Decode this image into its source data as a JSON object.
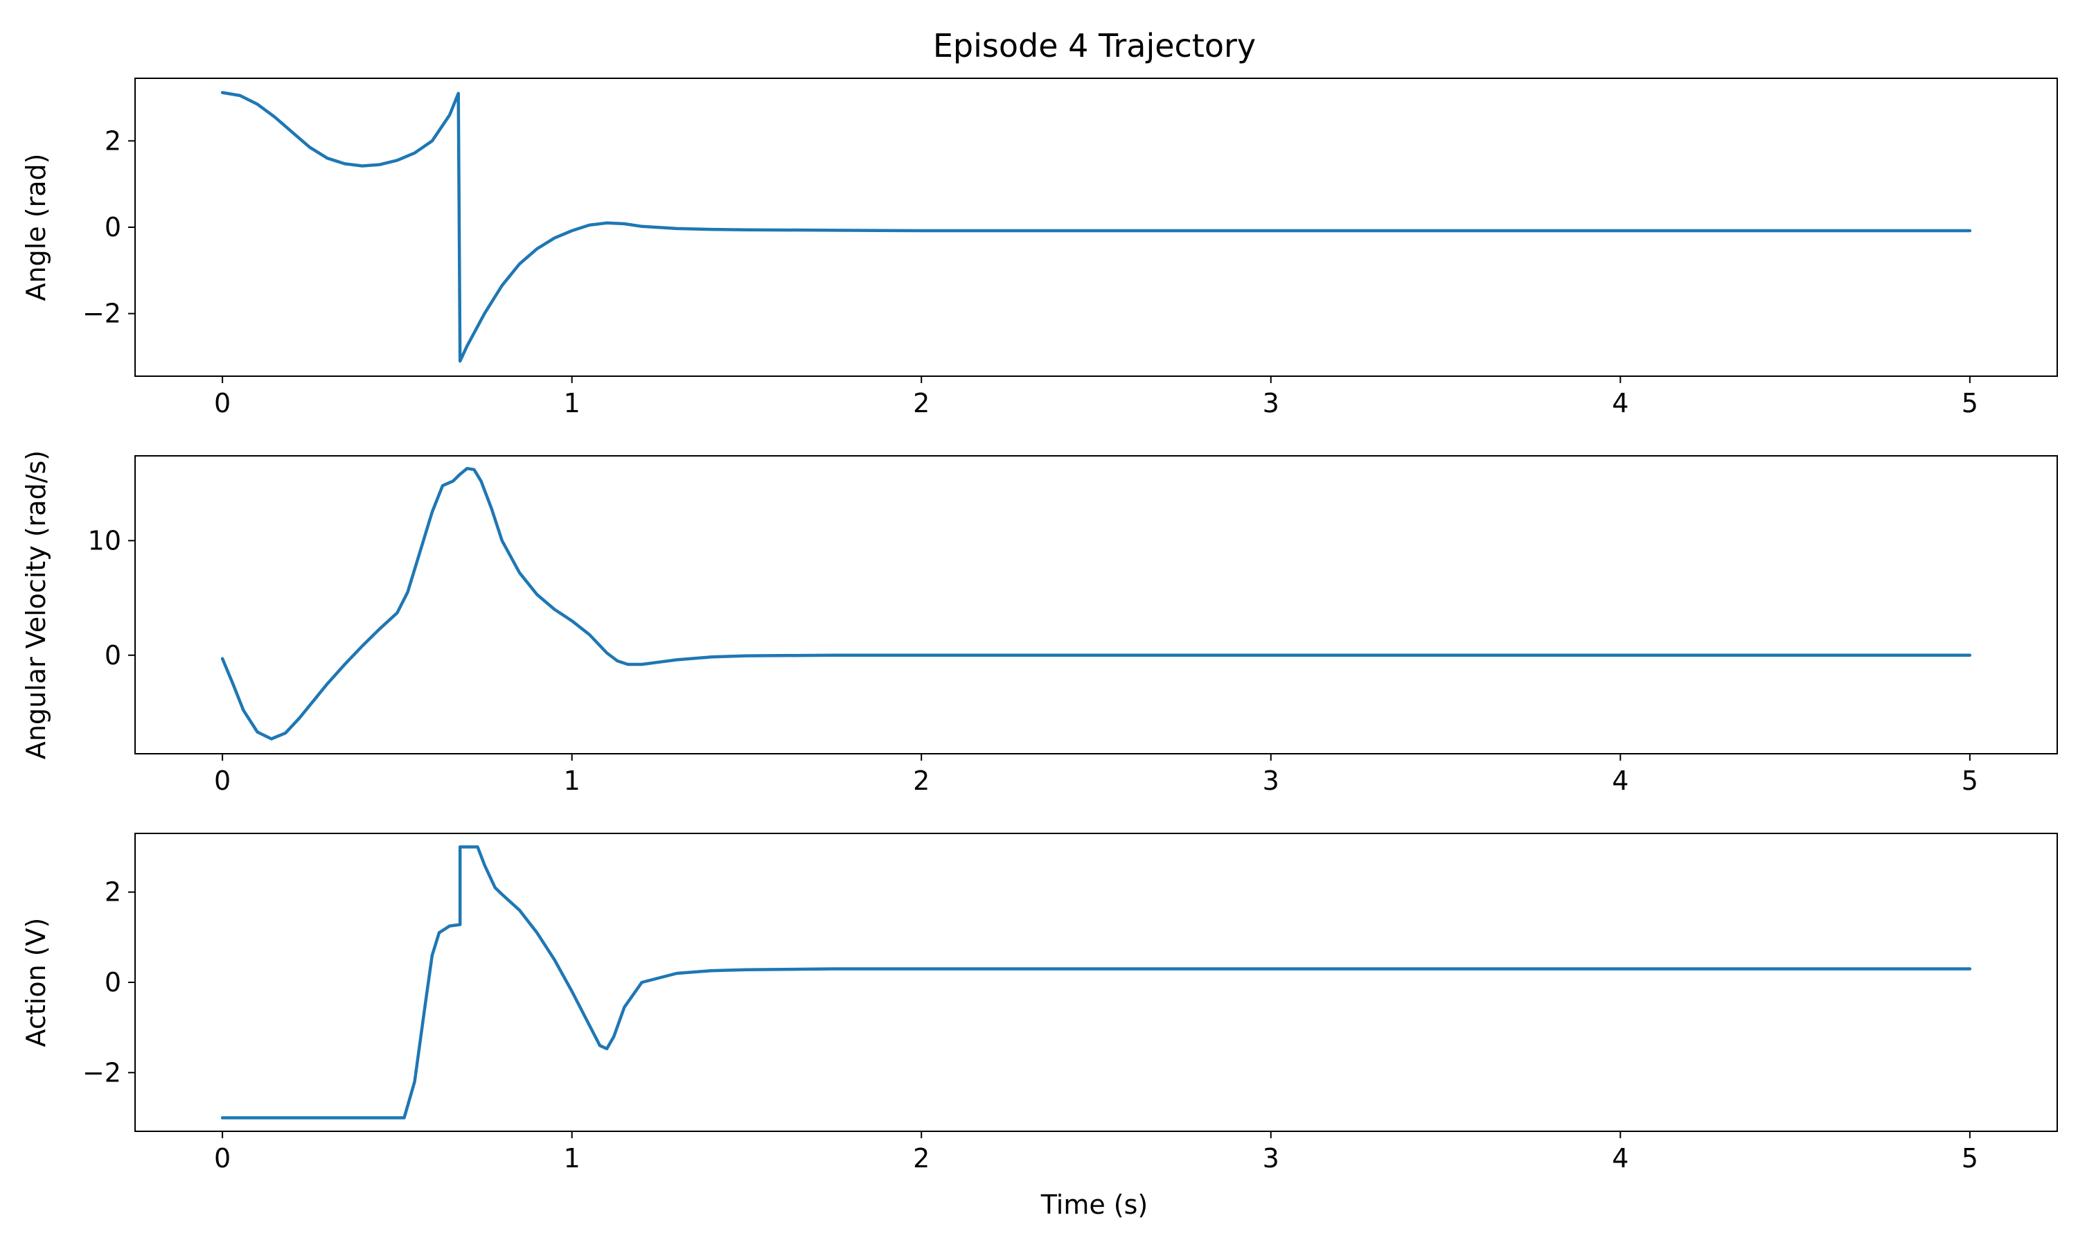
{
  "figure": {
    "title": "Episode 4 Trajectory",
    "xlabel": "Time (s)"
  },
  "chart_data": [
    {
      "type": "line",
      "title": "Episode 4 Trajectory",
      "xlabel": "",
      "ylabel": "Angle (rad)",
      "xlim": [
        -0.25,
        5.25
      ],
      "ylim": [
        -3.45,
        3.45
      ],
      "xticks": [
        0,
        1,
        2,
        3,
        4,
        5
      ],
      "yticks": [
        -2,
        0,
        2
      ],
      "ytick_labels": [
        "−2",
        "0",
        "2"
      ],
      "grid": false,
      "color": "#1f77b4",
      "series": [
        {
          "x": [
            0,
            0.05,
            0.1,
            0.15,
            0.2,
            0.25,
            0.3,
            0.35,
            0.4,
            0.45,
            0.5,
            0.55,
            0.6,
            0.65,
            0.675,
            0.68,
            0.7,
            0.75,
            0.8,
            0.85,
            0.9,
            0.95,
            1.0,
            1.05,
            1.1,
            1.15,
            1.2,
            1.3,
            1.4,
            1.5,
            1.75,
            2.0,
            2.5,
            3.0,
            4.0,
            5.0
          ],
          "y": [
            3.12,
            3.05,
            2.85,
            2.55,
            2.2,
            1.85,
            1.6,
            1.47,
            1.42,
            1.45,
            1.55,
            1.72,
            2.0,
            2.6,
            3.1,
            -3.1,
            -2.75,
            -2.0,
            -1.35,
            -0.85,
            -0.5,
            -0.25,
            -0.08,
            0.05,
            0.1,
            0.08,
            0.02,
            -0.03,
            -0.05,
            -0.06,
            -0.07,
            -0.08,
            -0.08,
            -0.08,
            -0.08,
            -0.08
          ]
        }
      ]
    },
    {
      "type": "line",
      "xlabel": "",
      "ylabel": "Angular Velocity (rad/s)",
      "xlim": [
        -0.25,
        5.25
      ],
      "ylim": [
        -8.6,
        17.4
      ],
      "xticks": [
        0,
        1,
        2,
        3,
        4,
        5
      ],
      "yticks": [
        0,
        10
      ],
      "ytick_labels": [
        "0",
        "10"
      ],
      "grid": false,
      "color": "#1f77b4",
      "series": [
        {
          "x": [
            0,
            0.03,
            0.06,
            0.1,
            0.14,
            0.18,
            0.22,
            0.26,
            0.3,
            0.35,
            0.4,
            0.45,
            0.5,
            0.53,
            0.56,
            0.6,
            0.63,
            0.66,
            0.68,
            0.7,
            0.72,
            0.74,
            0.77,
            0.8,
            0.85,
            0.9,
            0.95,
            1.0,
            1.05,
            1.1,
            1.13,
            1.16,
            1.2,
            1.25,
            1.3,
            1.4,
            1.5,
            1.75,
            2.0,
            3.0,
            4.0,
            5.0
          ],
          "y": [
            -0.3,
            -2.5,
            -4.8,
            -6.7,
            -7.3,
            -6.8,
            -5.5,
            -4.0,
            -2.5,
            -0.8,
            0.8,
            2.3,
            3.7,
            5.5,
            8.5,
            12.5,
            14.8,
            15.2,
            15.8,
            16.3,
            16.2,
            15.2,
            12.8,
            10.0,
            7.2,
            5.3,
            4.0,
            3.0,
            1.8,
            0.2,
            -0.5,
            -0.8,
            -0.8,
            -0.6,
            -0.4,
            -0.15,
            -0.05,
            0,
            0,
            0,
            0,
            0
          ]
        }
      ]
    },
    {
      "type": "line",
      "xlabel": "Time (s)",
      "ylabel": "Action (V)",
      "xlim": [
        -0.25,
        5.25
      ],
      "ylim": [
        -3.3,
        3.3
      ],
      "xticks": [
        0,
        1,
        2,
        3,
        4,
        5
      ],
      "yticks": [
        -2,
        0,
        2
      ],
      "ytick_labels": [
        "−2",
        "0",
        "2"
      ],
      "grid": false,
      "color": "#1f77b4",
      "series": [
        {
          "x": [
            0,
            0.52,
            0.55,
            0.58,
            0.6,
            0.62,
            0.65,
            0.68,
            0.68,
            0.73,
            0.75,
            0.78,
            0.8,
            0.85,
            0.9,
            0.95,
            1.0,
            1.05,
            1.08,
            1.1,
            1.12,
            1.15,
            1.2,
            1.3,
            1.4,
            1.5,
            1.75,
            2.0,
            3.0,
            4.0,
            5.0
          ],
          "y": [
            -3.0,
            -3.0,
            -2.2,
            -0.5,
            0.6,
            1.1,
            1.25,
            1.28,
            3.0,
            3.0,
            2.6,
            2.1,
            1.95,
            1.6,
            1.1,
            0.5,
            -0.2,
            -0.95,
            -1.4,
            -1.47,
            -1.2,
            -0.55,
            0.0,
            0.2,
            0.26,
            0.28,
            0.3,
            0.3,
            0.3,
            0.3,
            0.3
          ]
        }
      ]
    }
  ]
}
